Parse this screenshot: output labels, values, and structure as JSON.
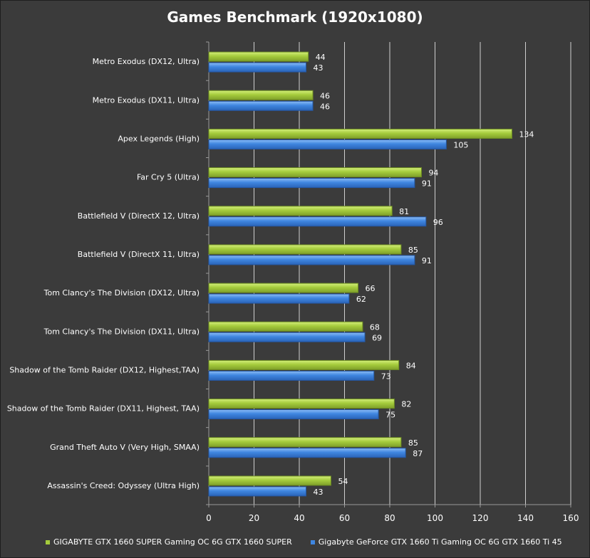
{
  "chart_data": {
    "type": "bar",
    "orientation": "horizontal",
    "title": "Games Benchmark (1920x1080)",
    "categories": [
      "Metro Exodus (DX12, Ultra)",
      "Metro Exodus (DX11, Ultra)",
      "Apex Legends (High)",
      "Far Cry 5 (Ultra)",
      "Battlefield V (DirectX 12, Ultra)",
      "Battlefield V (DirectX 11, Ultra)",
      "Tom Clancy's The Division (DX12, Ultra)",
      "Tom Clancy's The Division (DX11, Ultra)",
      "Shadow of the Tomb Raider (DX12, Highest,TAA)",
      "Shadow of the Tomb Raider (DX11, Highest, TAA)",
      "Grand Theft Auto V (Very High, SMAA)",
      "Assassin's Creed: Odyssey (Ultra High)"
    ],
    "series": [
      {
        "name": "GIGABYTE GTX 1660 SUPER Gaming OC 6G GTX 1660 SUPER",
        "color": "#a5cc3c",
        "values": [
          44,
          46,
          134,
          94,
          81,
          85,
          66,
          68,
          84,
          82,
          85,
          54
        ]
      },
      {
        "name": "Gigabyte GeForce GTX 1660 Ti Gaming OC 6G GTX 1660 Ti 45",
        "color": "#3f86e0",
        "values": [
          43,
          46,
          105,
          91,
          96,
          91,
          62,
          69,
          73,
          75,
          87,
          43
        ]
      }
    ],
    "xlim": [
      0,
      160
    ],
    "xticks": [
      0,
      20,
      40,
      60,
      80,
      100,
      120,
      140,
      160
    ],
    "grid": true,
    "legend_position": "bottom"
  }
}
